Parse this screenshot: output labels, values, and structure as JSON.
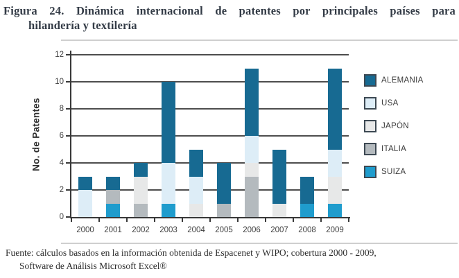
{
  "figure": {
    "title_line1": "Figura 24. Dinámica internacional de patentes por principales países para",
    "title_line2": "hilandería y textilería",
    "footnote_line1": "Fuente: cálculos basados en la información obtenida de Espacenet y WIPO; cobertura 2000 - 2009,",
    "footnote_line2": "Software de Análisis Microsoft Excel®"
  },
  "chart_data": {
    "type": "bar",
    "stacked": true,
    "title": "",
    "xlabel": "",
    "ylabel": "No. de Patentes",
    "ylim": [
      0,
      12
    ],
    "ytick_step": 2,
    "grid": true,
    "legend_position": "right",
    "categories": [
      "2000",
      "2001",
      "2002",
      "2003",
      "2004",
      "2005",
      "2006",
      "2007",
      "2008",
      "2009"
    ],
    "series": [
      {
        "name": "ALEMANIA",
        "color": "#176a92",
        "values": [
          1,
          1,
          1,
          6,
          2,
          3,
          5,
          4,
          2,
          6
        ]
      },
      {
        "name": "USA",
        "color": "#ddedf7",
        "values": [
          2,
          0,
          0,
          3,
          2,
          0,
          2,
          0,
          0,
          2
        ]
      },
      {
        "name": "JAPÓN",
        "color": "#e7e8e8",
        "values": [
          0,
          0,
          2,
          0,
          1,
          0,
          1,
          1,
          0,
          2
        ]
      },
      {
        "name": "ITALIA",
        "color": "#b4babe",
        "values": [
          0,
          1,
          1,
          0,
          0,
          1,
          3,
          0,
          0,
          0
        ]
      },
      {
        "name": "SUIZA",
        "color": "#1f9ccd",
        "values": [
          0,
          1,
          0,
          1,
          0,
          0,
          0,
          0,
          1,
          1
        ]
      }
    ],
    "stack_order_bottom_to_top": [
      "SUIZA",
      "ITALIA",
      "JAPÓN",
      "USA",
      "ALEMANIA"
    ],
    "totals_by_year": [
      3,
      3,
      4,
      10,
      5,
      4,
      11,
      5,
      3,
      11
    ],
    "colors": {
      "gridline": "#4d4d4d",
      "axis": "#383838",
      "legend_swatch_border": "#3c4852"
    }
  }
}
